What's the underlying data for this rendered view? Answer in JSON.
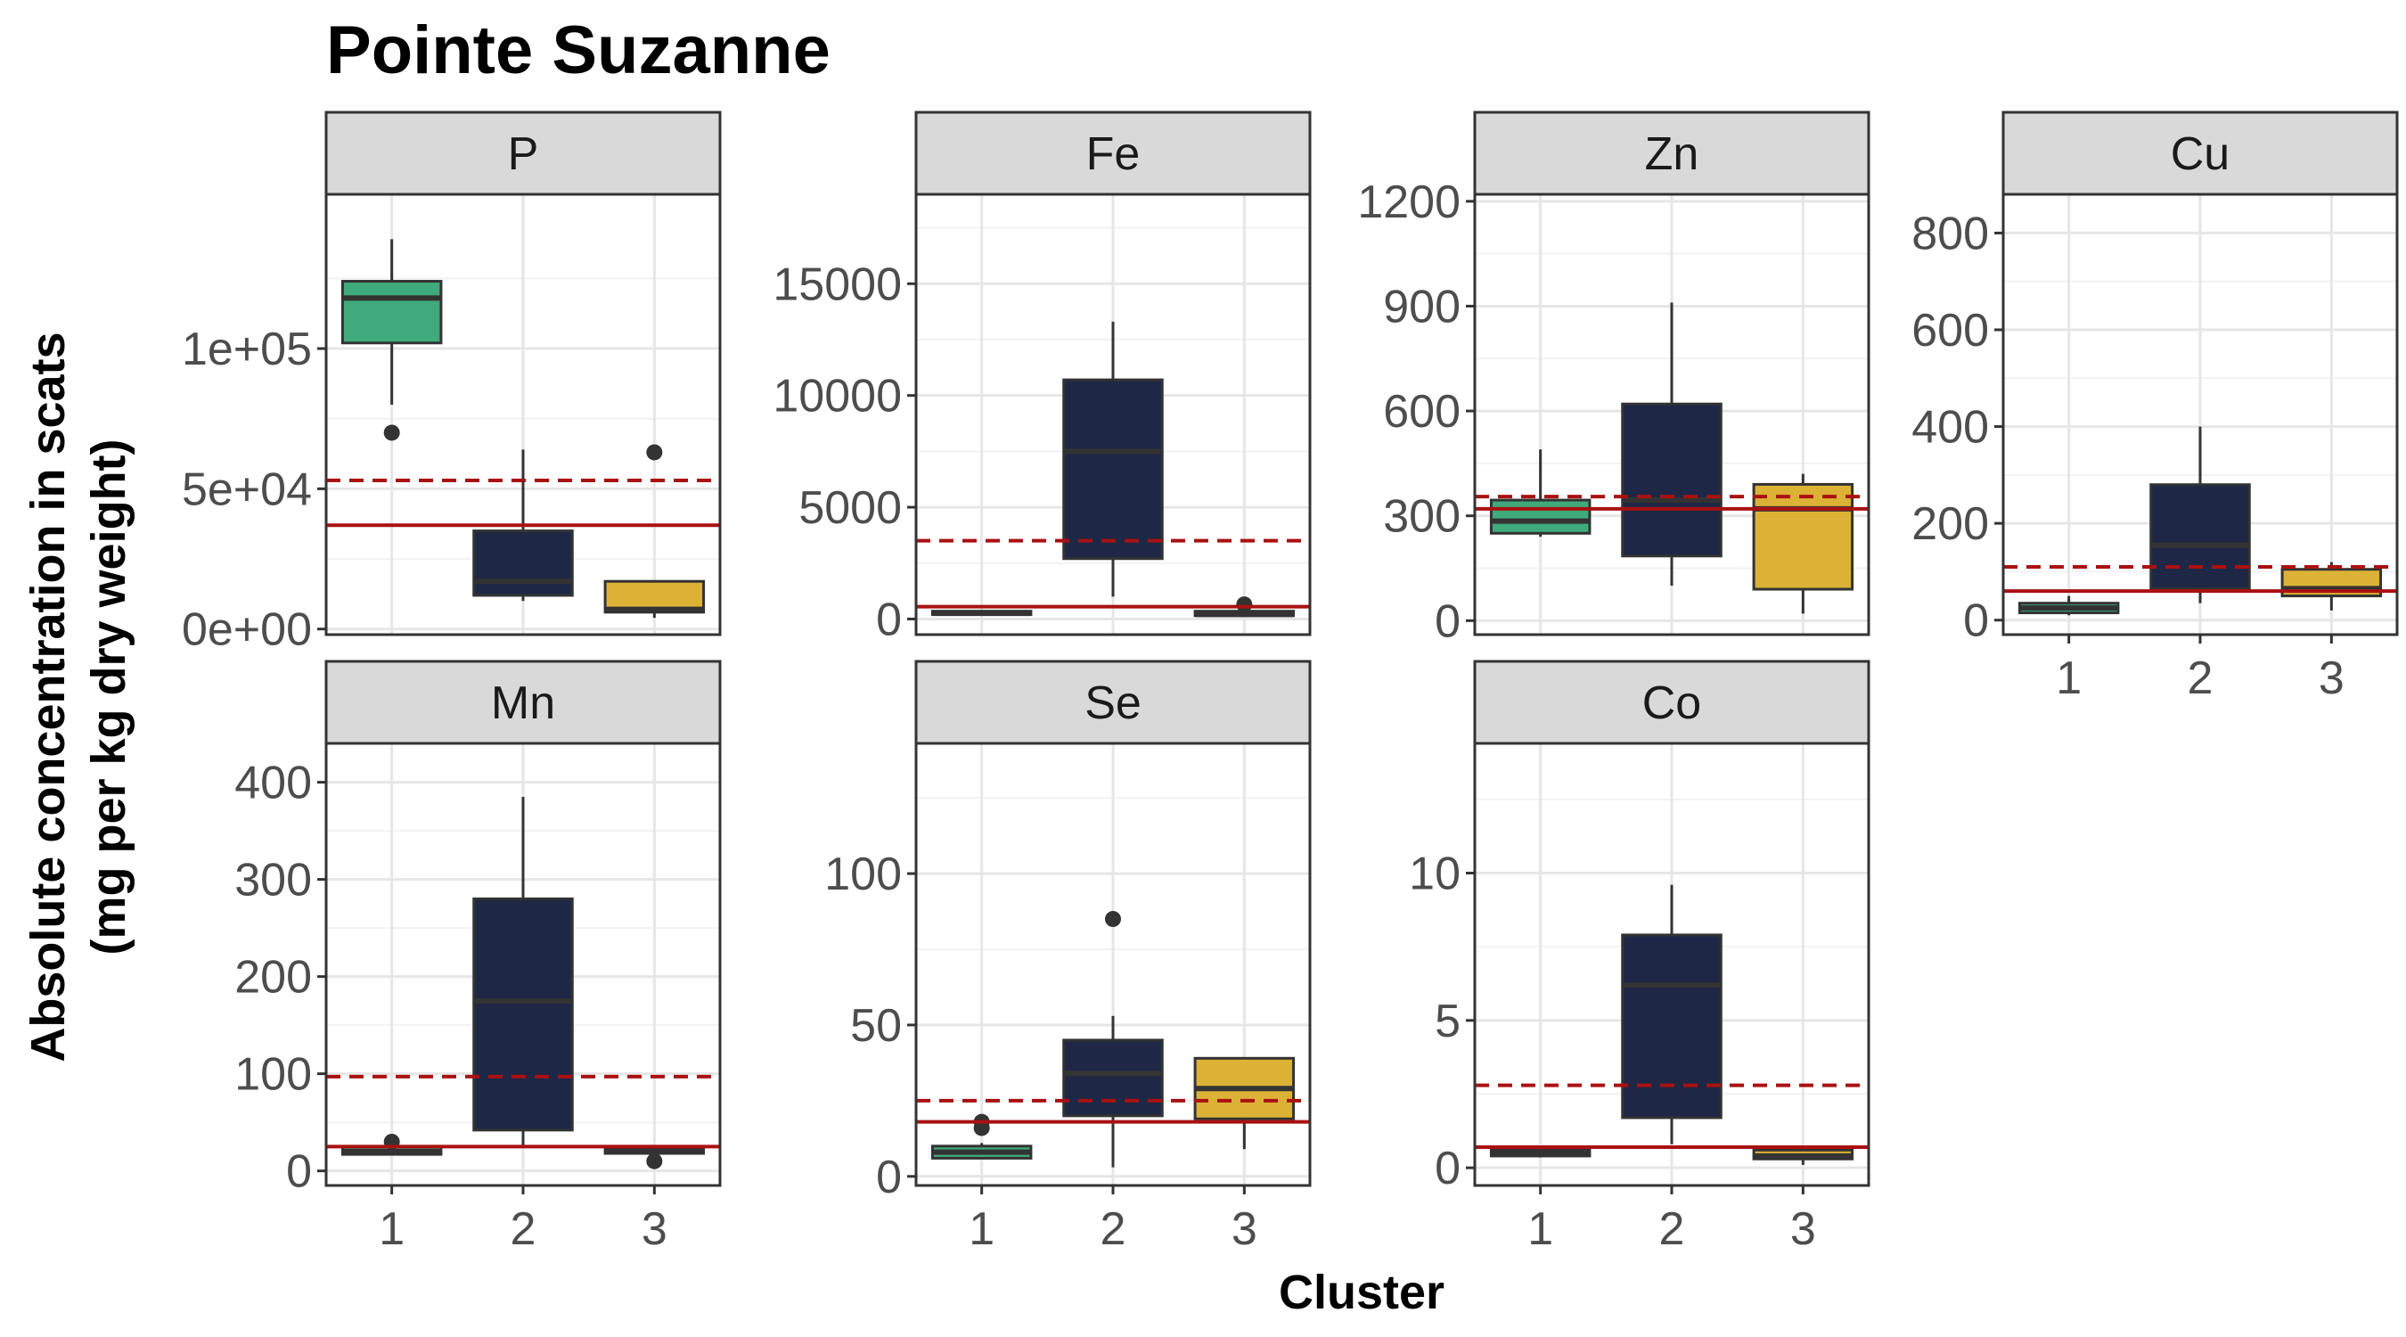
{
  "chart_data": {
    "type": "boxplot",
    "title": "Pointe Suzanne",
    "xlabel": "Cluster",
    "ylabel": [
      "Absolute concentration in scats",
      "(mg per kg dry weight)"
    ],
    "categories": [
      "1",
      "2",
      "3"
    ],
    "colors": {
      "1": "#3faa7c",
      "2": "#1e2746",
      "3": "#dcb236"
    },
    "reference_line_color": "#aa1111",
    "grid": true,
    "panels": [
      {
        "element": "P",
        "ylim": [
          -2000,
          155000
        ],
        "y_ticks": [
          0,
          50000,
          100000
        ],
        "y_tick_labels": [
          "0e+00",
          "5e+04",
          "1e+05"
        ],
        "solid_line": 37000,
        "dashed_line": 53000,
        "boxes": [
          {
            "cluster": "1",
            "whisker_low": 80000,
            "q1": 102000,
            "median": 118000,
            "q3": 124000,
            "whisker_high": 139000,
            "outliers": [
              70000
            ]
          },
          {
            "cluster": "2",
            "whisker_low": 10000,
            "q1": 12000,
            "median": 17000,
            "q3": 35000,
            "whisker_high": 64000,
            "outliers": []
          },
          {
            "cluster": "3",
            "whisker_low": 4000,
            "q1": 6000,
            "median": 7000,
            "q3": 17000,
            "whisker_high": 17000,
            "outliers": [
              63000
            ]
          }
        ]
      },
      {
        "element": "Fe",
        "ylim": [
          -700,
          19000
        ],
        "y_ticks": [
          0,
          5000,
          10000,
          15000
        ],
        "y_tick_labels": [
          "0",
          "5000",
          "10000",
          "15000"
        ],
        "solid_line": 550,
        "dashed_line": 3500,
        "boxes": [
          {
            "cluster": "1",
            "whisker_low": 150,
            "q1": 200,
            "median": 250,
            "q3": 350,
            "whisker_high": 400,
            "outliers": []
          },
          {
            "cluster": "2",
            "whisker_low": 1000,
            "q1": 2700,
            "median": 7500,
            "q3": 10700,
            "whisker_high": 13300,
            "outliers": []
          },
          {
            "cluster": "3",
            "whisker_low": 100,
            "q1": 150,
            "median": 200,
            "q3": 350,
            "whisker_high": 500,
            "outliers": [
              650
            ]
          }
        ]
      },
      {
        "element": "Zn",
        "ylim": [
          -40,
          1220
        ],
        "y_ticks": [
          0,
          300,
          600,
          900,
          1200
        ],
        "y_tick_labels": [
          "0",
          "300",
          "600",
          "900",
          "1200"
        ],
        "solid_line": 320,
        "dashed_line": 355,
        "boxes": [
          {
            "cluster": "1",
            "whisker_low": 240,
            "q1": 250,
            "median": 285,
            "q3": 345,
            "whisker_high": 490,
            "outliers": []
          },
          {
            "cluster": "2",
            "whisker_low": 100,
            "q1": 185,
            "median": 345,
            "q3": 620,
            "whisker_high": 910,
            "outliers": []
          },
          {
            "cluster": "3",
            "whisker_low": 20,
            "q1": 90,
            "median": 320,
            "q3": 390,
            "whisker_high": 420,
            "outliers": []
          }
        ]
      },
      {
        "element": "Cu",
        "ylim": [
          -30,
          880
        ],
        "y_ticks": [
          0,
          200,
          400,
          600,
          800
        ],
        "y_tick_labels": [
          "0",
          "200",
          "400",
          "600",
          "800"
        ],
        "solid_line": 60,
        "dashed_line": 110,
        "boxes": [
          {
            "cluster": "1",
            "whisker_low": 10,
            "q1": 15,
            "median": 25,
            "q3": 35,
            "whisker_high": 50,
            "outliers": []
          },
          {
            "cluster": "2",
            "whisker_low": 35,
            "q1": 65,
            "median": 155,
            "q3": 280,
            "whisker_high": 400,
            "outliers": []
          },
          {
            "cluster": "3",
            "whisker_low": 20,
            "q1": 50,
            "median": 65,
            "q3": 105,
            "whisker_high": 120,
            "outliers": []
          }
        ]
      },
      {
        "element": "Mn",
        "ylim": [
          -15,
          440
        ],
        "y_ticks": [
          0,
          100,
          200,
          300,
          400
        ],
        "y_tick_labels": [
          "0",
          "100",
          "200",
          "300",
          "400"
        ],
        "solid_line": 25,
        "dashed_line": 97,
        "boxes": [
          {
            "cluster": "1",
            "whisker_low": 16,
            "q1": 17,
            "median": 20,
            "q3": 25,
            "whisker_high": 28,
            "outliers": [
              30
            ]
          },
          {
            "cluster": "2",
            "whisker_low": 25,
            "q1": 42,
            "median": 175,
            "q3": 280,
            "whisker_high": 385,
            "outliers": []
          },
          {
            "cluster": "3",
            "whisker_low": 18,
            "q1": 18,
            "median": 20,
            "q3": 24,
            "whisker_high": 26,
            "outliers": [
              10
            ]
          }
        ]
      },
      {
        "element": "Se",
        "ylim": [
          -3,
          143
        ],
        "y_ticks": [
          0,
          50,
          100
        ],
        "y_tick_labels": [
          "0",
          "50",
          "100"
        ],
        "solid_line": 18,
        "dashed_line": 25,
        "boxes": [
          {
            "cluster": "1",
            "whisker_low": 6,
            "q1": 6,
            "median": 8,
            "q3": 10,
            "whisker_high": 11,
            "outliers": [
              16,
              18
            ]
          },
          {
            "cluster": "2",
            "whisker_low": 3,
            "q1": 20,
            "median": 34,
            "q3": 45,
            "whisker_high": 53,
            "outliers": [
              85
            ]
          },
          {
            "cluster": "3",
            "whisker_low": 9,
            "q1": 19,
            "median": 29,
            "q3": 39,
            "whisker_high": 39,
            "outliers": []
          }
        ]
      },
      {
        "element": "Co",
        "ylim": [
          -0.6,
          14.4
        ],
        "y_ticks": [
          0,
          5,
          10
        ],
        "y_tick_labels": [
          "0",
          "5",
          "10"
        ],
        "solid_line": 0.7,
        "dashed_line": 2.8,
        "boxes": [
          {
            "cluster": "1",
            "whisker_low": 0.35,
            "q1": 0.4,
            "median": 0.5,
            "q3": 0.6,
            "whisker_high": 0.7,
            "outliers": []
          },
          {
            "cluster": "2",
            "whisker_low": 0.8,
            "q1": 1.7,
            "median": 6.2,
            "q3": 7.9,
            "whisker_high": 9.6,
            "outliers": []
          },
          {
            "cluster": "3",
            "whisker_low": 0.1,
            "q1": 0.3,
            "median": 0.4,
            "q3": 0.6,
            "whisker_high": 0.7,
            "outliers": []
          }
        ]
      }
    ]
  }
}
